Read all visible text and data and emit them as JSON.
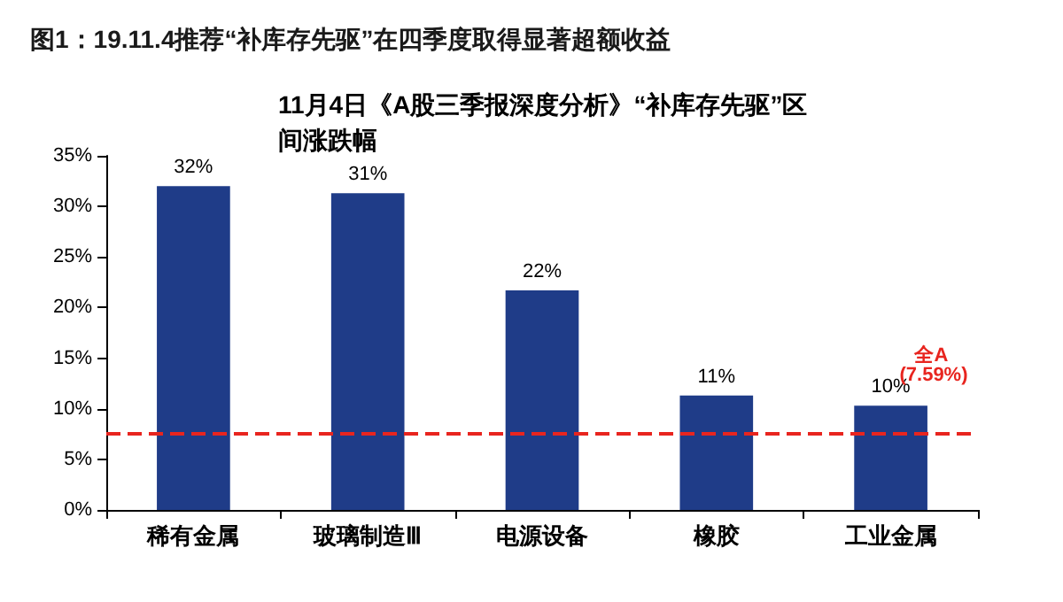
{
  "chart_data": {
    "type": "bar",
    "title": "图1：19.11.4推荐“补库存先驱”在四季度取得显著超额收益",
    "subtitle": "11月4日《A股三季报深度分析》“补库存先驱”区间涨跌幅",
    "categories": [
      "稀有金属",
      "玻璃制造Ⅲ",
      "电源设备",
      "橡胶",
      "工业金属"
    ],
    "values": [
      32,
      31.3,
      21.7,
      11.3,
      10.3
    ],
    "color": "#1f3c88",
    "value_labels": [
      "32%",
      "31%",
      "22%",
      "11%",
      "10%"
    ],
    "ylim": [
      0,
      35
    ],
    "yticks": [
      {
        "value": 0,
        "label": "0%"
      },
      {
        "value": 5,
        "label": "5%"
      },
      {
        "value": 10,
        "label": "10%"
      },
      {
        "value": 15,
        "label": "15%"
      },
      {
        "value": 20,
        "label": "20%"
      },
      {
        "value": 25,
        "label": "25%"
      },
      {
        "value": 30,
        "label": "30%"
      },
      {
        "value": 35,
        "label": "35%"
      }
    ],
    "ref_lines": [
      {
        "axis": "y",
        "value": 7.59,
        "label": "全A (7.59%)",
        "color": "#e8251f",
        "line_style": "dashed"
      }
    ],
    "grid": false
  }
}
